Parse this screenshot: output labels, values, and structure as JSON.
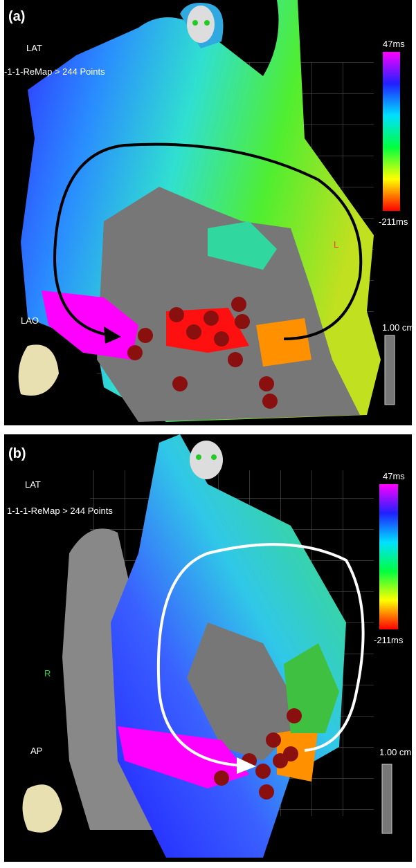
{
  "panels": [
    {
      "label": "(a)",
      "map_type": "LAT",
      "map_name": "-1-1-ReMap > 244 Points",
      "scale_max": "47ms",
      "scale_min": "-211ms",
      "view": "LAO",
      "scale_bar": "1.00 cm",
      "marker": "L"
    },
    {
      "label": "(b)",
      "map_type": "LAT",
      "map_name": "1-1-1-ReMap > 244 Points",
      "scale_max": "47ms",
      "scale_min": "-211ms",
      "view": "AP",
      "scale_bar": "1.00 cm",
      "marker": "R"
    }
  ]
}
